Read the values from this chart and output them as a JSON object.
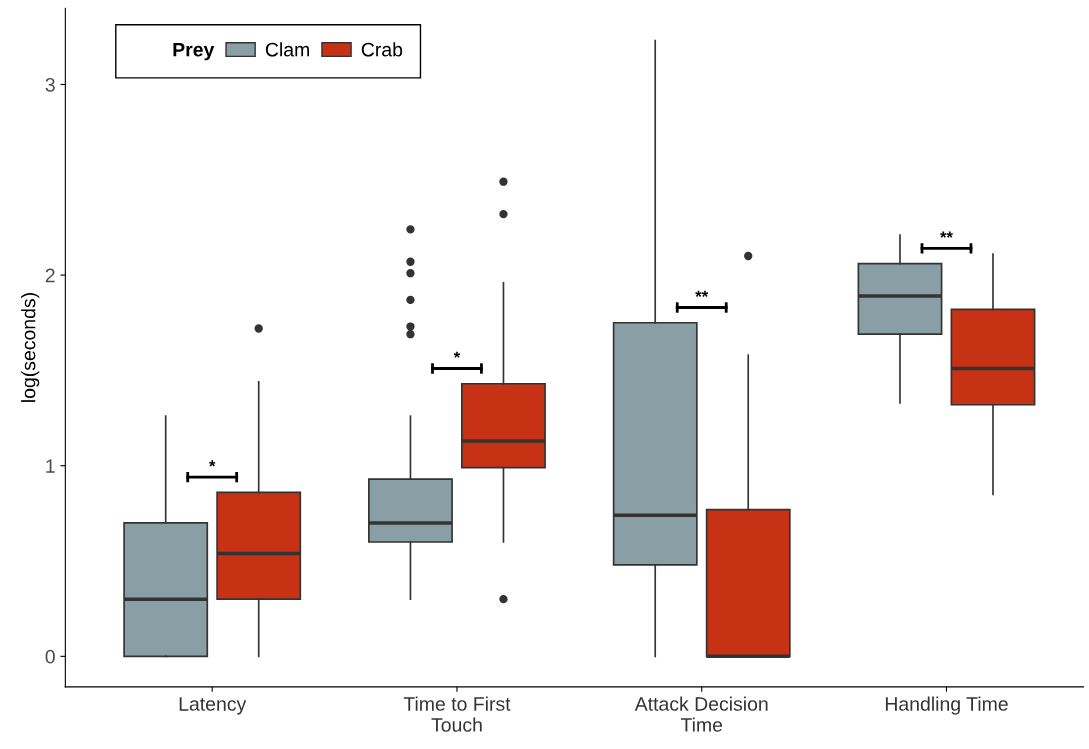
{
  "chart_data": {
    "type": "box",
    "ylabel": "log(seconds)",
    "legend_title": "Prey",
    "legend": "top left",
    "grid": false,
    "categories": [
      "Latency",
      "Time to First\nTouch",
      "Attack Decision\nTime",
      "Handling Time"
    ],
    "ylim": [
      -0.16,
      3.4
    ],
    "yticks": [
      0,
      1,
      2,
      3
    ],
    "series": [
      {
        "name": "Clam",
        "color": "#8a9ea5",
        "boxes": [
          {
            "low": 0,
            "q1": 0,
            "median": 0.3,
            "q3": 0.7,
            "high": 1.26
          },
          {
            "low": 0.3,
            "q1": 0.6,
            "median": 0.7,
            "q3": 0.93,
            "high": 1.26,
            "outliers": [
              2.24,
              2.07,
              2.01,
              1.87,
              1.73,
              1.69
            ]
          },
          {
            "low": 0,
            "q1": 0.48,
            "median": 0.74,
            "q3": 1.75,
            "high": 3.23
          },
          {
            "low": 1.33,
            "q1": 1.69,
            "median": 1.89,
            "q3": 2.06,
            "high": 2.21
          }
        ]
      },
      {
        "name": "Crab",
        "color": "#c83214",
        "boxes": [
          {
            "low": 0,
            "q1": 0.3,
            "median": 0.54,
            "q3": 0.86,
            "high": 1.44,
            "outliers": [
              1.72
            ]
          },
          {
            "low": 0.6,
            "q1": 0.99,
            "median": 1.13,
            "q3": 1.43,
            "high": 1.96,
            "outliers": [
              2.49,
              2.32,
              0.3
            ]
          },
          {
            "low": 0,
            "q1": 0,
            "median": 0,
            "q3": 0.77,
            "high": 1.58,
            "outliers": [
              2.1
            ]
          },
          {
            "low": 0.85,
            "q1": 1.32,
            "median": 1.51,
            "q3": 1.82,
            "high": 2.11
          }
        ]
      }
    ],
    "annotations": [
      "*",
      "*",
      "**",
      "**"
    ]
  }
}
